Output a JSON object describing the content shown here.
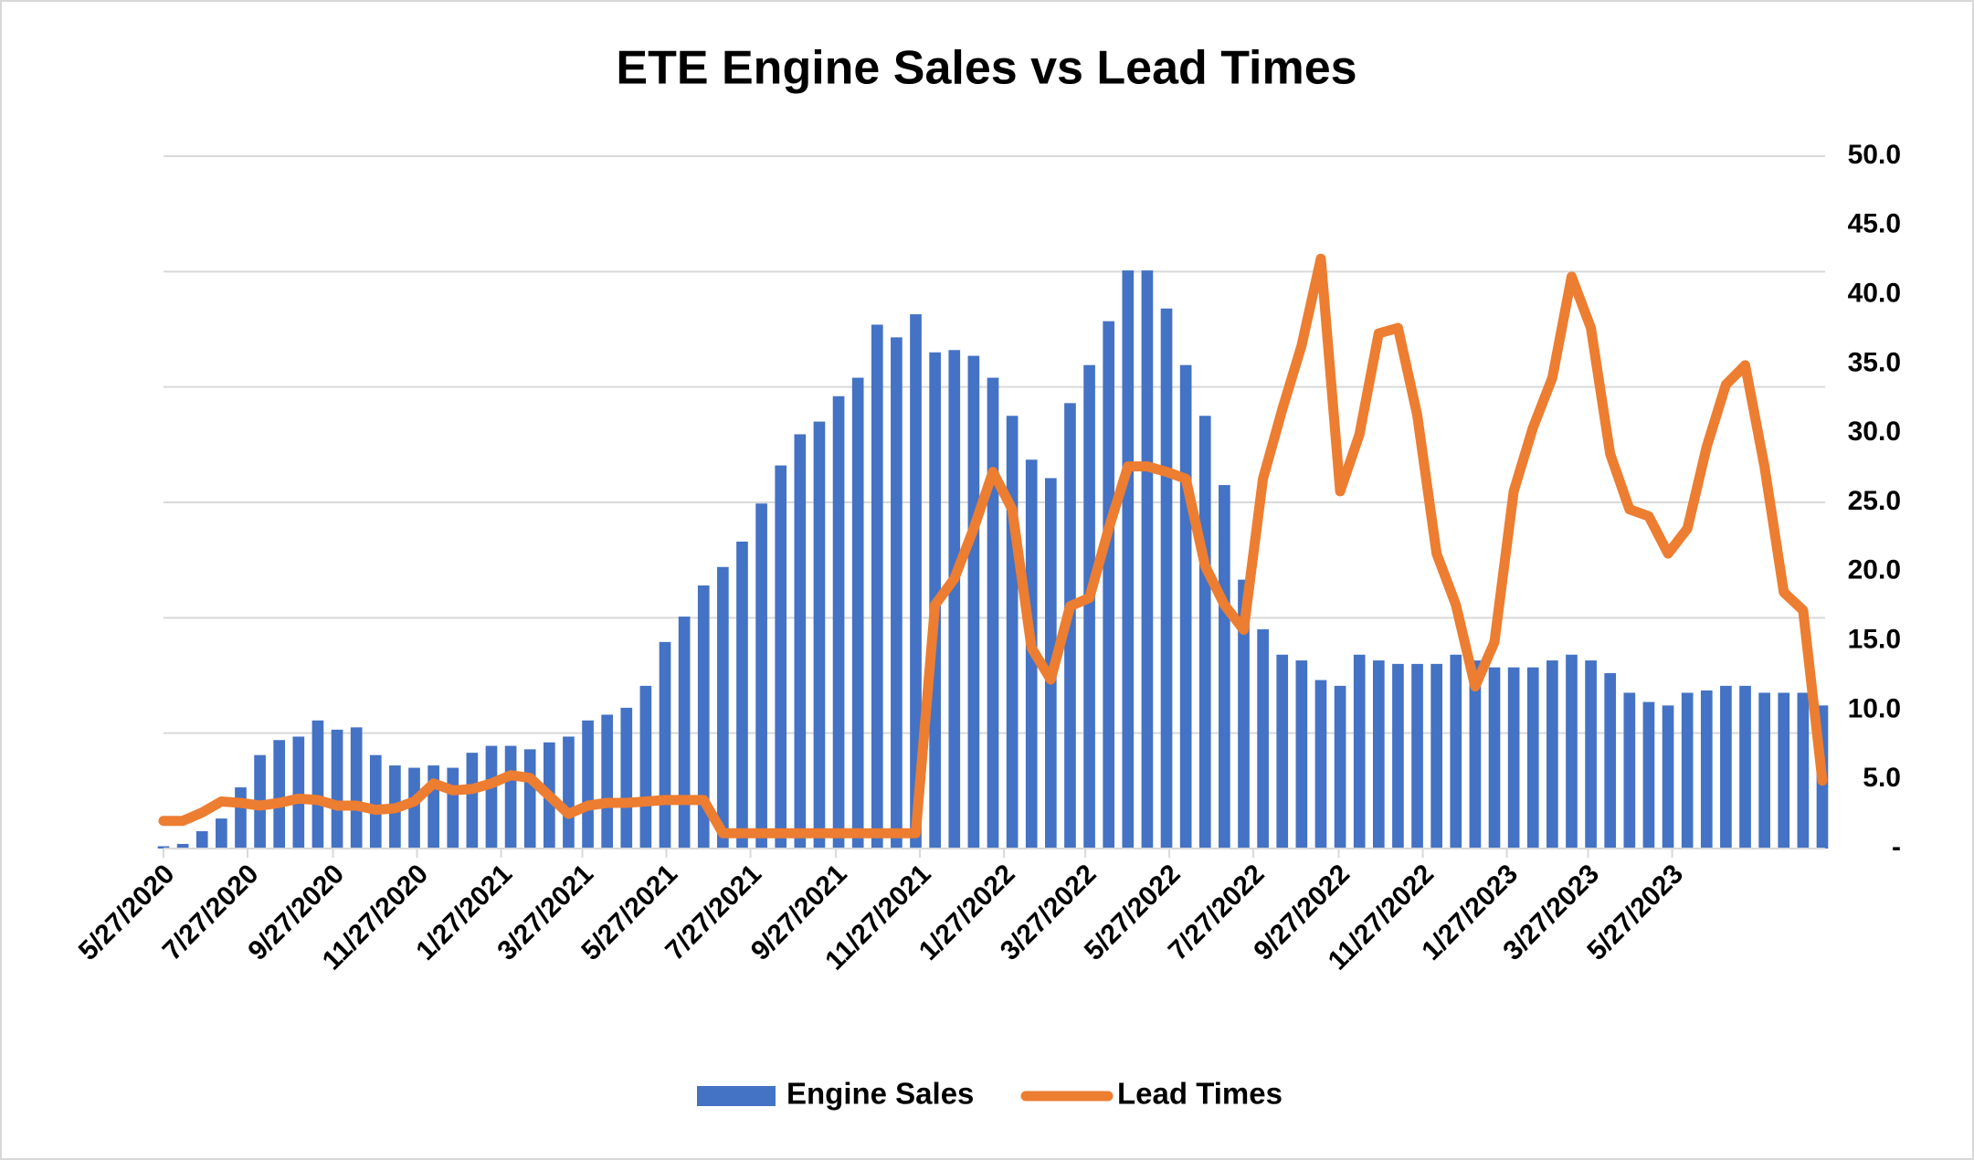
{
  "chart_data": {
    "type": "bar-line",
    "title": "ETE Engine Sales vs Lead Times",
    "x": [
      "5/27/2020",
      "6/10/2020",
      "6/24/2020",
      "7/8/2020",
      "7/22/2020",
      "8/5/2020",
      "8/19/2020",
      "9/2/2020",
      "9/16/2020",
      "9/30/2020",
      "10/14/2020",
      "10/28/2020",
      "11/11/2020",
      "11/25/2020",
      "12/9/2020",
      "12/23/2020",
      "1/6/2021",
      "1/20/2021",
      "2/3/2021",
      "2/17/2021",
      "3/3/2021",
      "3/17/2021",
      "3/31/2021",
      "4/14/2021",
      "4/28/2021",
      "5/12/2021",
      "5/26/2021",
      "6/9/2021",
      "6/23/2021",
      "7/7/2021",
      "7/21/2021",
      "8/4/2021",
      "8/18/2021",
      "9/1/2021",
      "9/15/2021",
      "9/29/2021",
      "10/13/2021",
      "10/27/2021",
      "11/10/2021",
      "11/24/2021",
      "12/8/2021",
      "12/22/2021",
      "1/5/2022",
      "1/19/2022",
      "2/2/2022",
      "2/16/2022",
      "3/2/2022",
      "3/16/2022",
      "3/30/2022",
      "4/13/2022",
      "4/27/2022",
      "5/11/2022",
      "5/25/2022",
      "6/8/2022",
      "6/22/2022",
      "7/6/2022",
      "7/20/2022",
      "8/3/2022",
      "8/17/2022",
      "8/31/2022",
      "9/14/2022",
      "9/28/2022",
      "10/12/2022",
      "10/26/2022",
      "11/9/2022",
      "11/23/2022",
      "12/7/2022",
      "12/21/2022",
      "1/4/2023",
      "1/18/2023",
      "2/1/2023",
      "2/15/2023",
      "3/1/2023",
      "3/15/2023",
      "3/29/2023",
      "4/12/2023",
      "4/26/2023",
      "5/10/2023",
      "5/24/2023",
      "6/7/2023",
      "6/21/2023",
      "7/5/2023",
      "7/19/2023",
      "8/2/2023",
      "8/16/2023",
      "8/30/2023",
      "9/13/2023"
    ],
    "series": [
      {
        "name": "Engine Sales",
        "color": "#4472c4",
        "axis": "y",
        "values": [
          0.2,
          0.4,
          1.5,
          2.6,
          5.3,
          8.1,
          9.4,
          9.7,
          11.1,
          10.3,
          10.5,
          8.1,
          7.2,
          7.0,
          7.2,
          7.0,
          8.3,
          8.9,
          8.9,
          8.6,
          9.2,
          9.7,
          11.1,
          11.6,
          12.2,
          14.1,
          17.9,
          20.1,
          22.8,
          24.4,
          26.6,
          29.9,
          33.2,
          35.9,
          37.0,
          39.2,
          40.8,
          45.4,
          44.3,
          46.3,
          43.0,
          43.2,
          42.7,
          40.8,
          37.5,
          33.7,
          32.1,
          38.6,
          41.9,
          45.7,
          50.1,
          50.1,
          46.8,
          41.9,
          37.5,
          31.5,
          23.3,
          19.0,
          16.8,
          16.3,
          14.6,
          14.1,
          16.8,
          16.3,
          16.0,
          16.0,
          16.0,
          16.8,
          16.3,
          15.7,
          15.7,
          15.7,
          16.3,
          16.8,
          16.3,
          15.2,
          13.5,
          12.7,
          12.4,
          13.5,
          13.7,
          14.1,
          14.1,
          13.5,
          13.5,
          13.5,
          12.4
        ]
      },
      {
        "name": "Lead Times",
        "color": "#ed7d31",
        "axis": "y2",
        "values": [
          2.0,
          2.0,
          2.6,
          3.4,
          3.3,
          3.1,
          3.3,
          3.6,
          3.5,
          3.1,
          3.1,
          2.8,
          2.9,
          3.4,
          4.7,
          4.2,
          4.3,
          4.7,
          5.3,
          5.1,
          3.8,
          2.5,
          3.1,
          3.3,
          3.3,
          3.4,
          3.5,
          3.5,
          3.5,
          1.1,
          1.1,
          1.1,
          1.1,
          1.1,
          1.1,
          1.1,
          1.1,
          1.1,
          1.1,
          1.1,
          17.6,
          19.5,
          23.1,
          27.2,
          24.5,
          14.5,
          12.2,
          17.5,
          18.1,
          23.1,
          27.6,
          27.6,
          27.2,
          26.7,
          20.4,
          17.6,
          15.8,
          26.7,
          31.7,
          36.3,
          42.6,
          25.8,
          29.9,
          37.2,
          37.6,
          31.3,
          21.3,
          17.6,
          11.7,
          14.9,
          25.8,
          30.4,
          34.0,
          41.3,
          37.6,
          28.5,
          24.5,
          24.0,
          21.3,
          23.1,
          29.0,
          33.5,
          34.9,
          27.6,
          18.5,
          17.2,
          4.9
        ]
      }
    ],
    "xlim": [
      "5/27/2020",
      "9/15/2023"
    ],
    "xticks": [
      "5/27/2020",
      "7/27/2020",
      "9/27/2020",
      "11/27/2020",
      "1/27/2021",
      "3/27/2021",
      "5/27/2021",
      "7/27/2021",
      "9/27/2021",
      "11/27/2021",
      "1/27/2022",
      "3/27/2022",
      "5/27/2022",
      "7/27/2022",
      "9/27/2022",
      "11/27/2022",
      "1/27/2023",
      "3/27/2023",
      "5/27/2023"
    ],
    "ylim": [
      0,
      60
    ],
    "yticks": [
      0,
      10,
      20,
      30,
      40,
      50,
      60
    ],
    "y2lim": [
      0,
      50
    ],
    "y2ticks": [
      {
        "value": 0,
        "label": "-"
      },
      {
        "value": 5,
        "label": "5.0"
      },
      {
        "value": 10,
        "label": "10.0"
      },
      {
        "value": 15,
        "label": "15.0"
      },
      {
        "value": 20,
        "label": "20.0"
      },
      {
        "value": 25,
        "label": "25.0"
      },
      {
        "value": 30,
        "label": "30.0"
      },
      {
        "value": 35,
        "label": "35.0"
      },
      {
        "value": 40,
        "label": "40.0"
      },
      {
        "value": 45,
        "label": "45.0"
      },
      {
        "value": 50,
        "label": "50.0"
      }
    ],
    "grid": true,
    "legend": "bottom"
  }
}
